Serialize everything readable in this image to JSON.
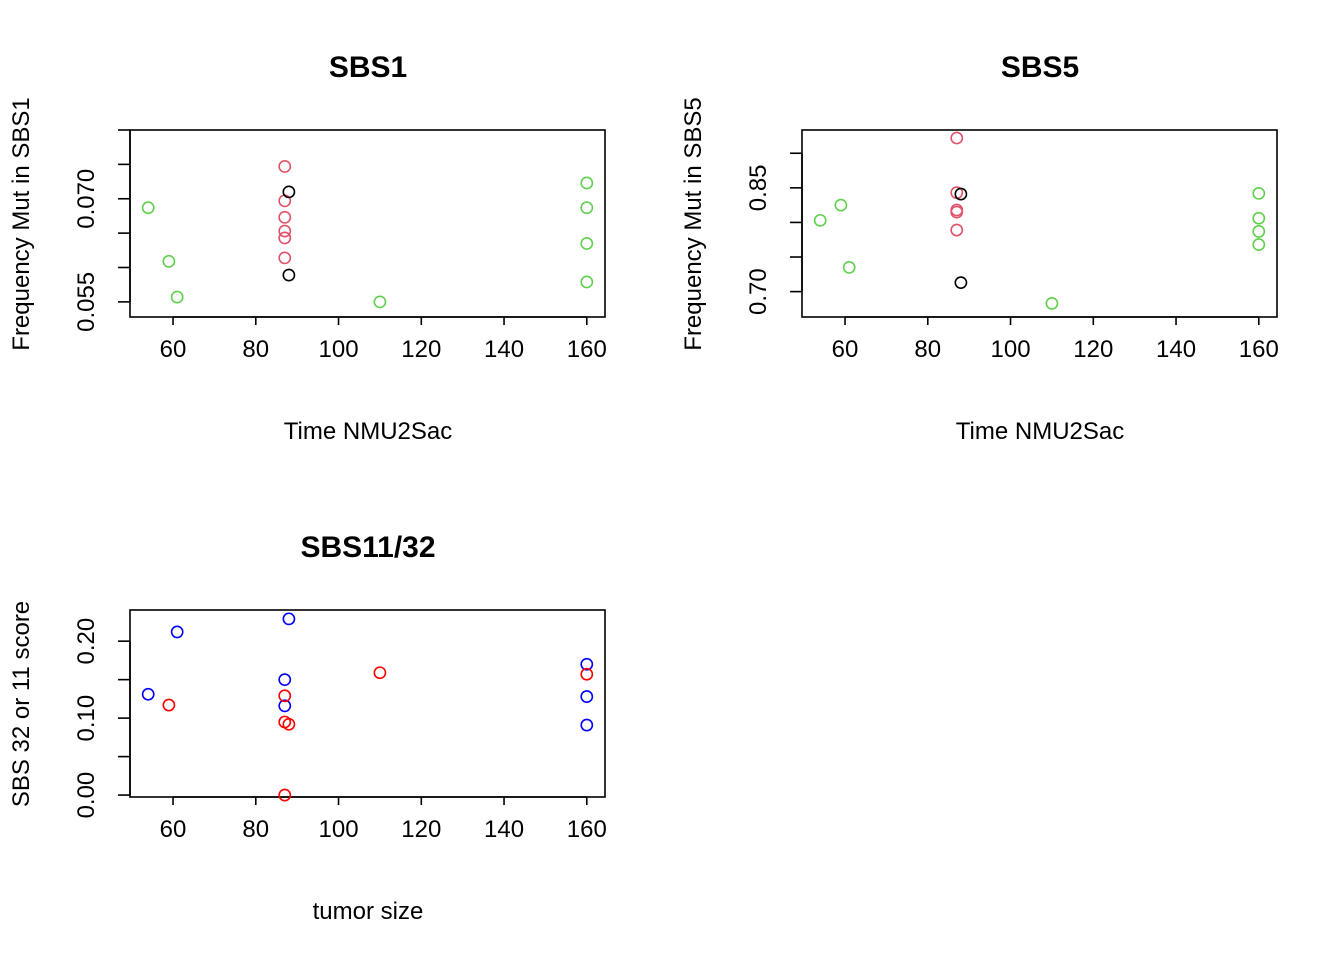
{
  "colors": {
    "black": "#000000",
    "rose": "#DF536B",
    "green": "#61D04F",
    "red": "#FF0000",
    "blue": "#0000FF"
  },
  "chart_data": [
    {
      "type": "scatter",
      "title": "SBS1",
      "xlabel": "Time NMU2Sac",
      "ylabel": "Frequency Mut in SBS1",
      "xlim": [
        49.6,
        164.4
      ],
      "ylim": [
        0.0528,
        0.08
      ],
      "xticks": [
        60,
        80,
        100,
        120,
        140,
        160
      ],
      "yticks": [
        0.055,
        0.06,
        0.065,
        0.07,
        0.075,
        0.08
      ],
      "ytick_labels": [
        "0.055",
        "",
        "",
        "0.070",
        "",
        ""
      ],
      "series": [
        {
          "color": "#61D04F",
          "points": [
            [
              54,
              0.0687
            ],
            [
              59,
              0.0609
            ],
            [
              61,
              0.0557
            ],
            [
              110,
              0.055
            ],
            [
              160,
              0.0723
            ],
            [
              160,
              0.0687
            ],
            [
              160,
              0.0635
            ],
            [
              160,
              0.0579
            ]
          ]
        },
        {
          "color": "#DF536B",
          "points": [
            [
              87,
              0.0747
            ],
            [
              87,
              0.0697
            ],
            [
              87,
              0.0673
            ],
            [
              87,
              0.0653
            ],
            [
              87,
              0.0643
            ],
            [
              87,
              0.0614
            ]
          ]
        },
        {
          "color": "#000000",
          "points": [
            [
              88,
              0.071
            ],
            [
              88,
              0.0589
            ]
          ]
        }
      ]
    },
    {
      "type": "scatter",
      "title": "SBS5",
      "xlabel": "Time NMU2Sac",
      "ylabel": "Frequency Mut in SBS5",
      "xlim": [
        49.6,
        164.4
      ],
      "ylim": [
        0.6633,
        0.9336
      ],
      "xticks": [
        60,
        80,
        100,
        120,
        140,
        160
      ],
      "yticks": [
        0.7,
        0.75,
        0.8,
        0.85,
        0.9
      ],
      "ytick_labels": [
        "0.70",
        "",
        "",
        "0.85",
        ""
      ],
      "series": [
        {
          "color": "#61D04F",
          "points": [
            [
              54,
              0.803
            ],
            [
              59,
              0.825
            ],
            [
              61,
              0.735
            ],
            [
              110,
              0.683
            ],
            [
              160,
              0.842
            ],
            [
              160,
              0.806
            ],
            [
              160,
              0.787
            ],
            [
              160,
              0.768
            ]
          ]
        },
        {
          "color": "#DF536B",
          "points": [
            [
              87,
              0.922
            ],
            [
              87,
              0.843
            ],
            [
              87,
              0.818
            ],
            [
              87,
              0.815
            ],
            [
              87,
              0.789
            ]
          ]
        },
        {
          "color": "#000000",
          "points": [
            [
              88,
              0.841
            ],
            [
              88,
              0.713
            ]
          ]
        }
      ]
    },
    {
      "type": "scatter",
      "title": "SBS11/32",
      "xlabel": "tumor size",
      "ylabel": "SBS 32 or 11 score",
      "xlim": [
        49.6,
        164.4
      ],
      "ylim": [
        -0.0025,
        0.2405
      ],
      "xticks": [
        60,
        80,
        100,
        120,
        140,
        160
      ],
      "yticks": [
        0.0,
        0.05,
        0.1,
        0.15,
        0.2
      ],
      "ytick_labels": [
        "0.00",
        "",
        "0.10",
        "",
        "0.20"
      ],
      "series": [
        {
          "color": "#0000FF",
          "points": [
            [
              54,
              0.131
            ],
            [
              61,
              0.212
            ],
            [
              88,
              0.229
            ],
            [
              87,
              0.15
            ],
            [
              87,
              0.116
            ],
            [
              160,
              0.17
            ],
            [
              160,
              0.128
            ],
            [
              160,
              0.091
            ]
          ]
        },
        {
          "color": "#FF0000",
          "points": [
            [
              59,
              0.117
            ],
            [
              110,
              0.159
            ],
            [
              87,
              0.129
            ],
            [
              87,
              0.095
            ],
            [
              88,
              0.092
            ],
            [
              87,
              0.0
            ],
            [
              160,
              0.157
            ]
          ]
        }
      ]
    }
  ]
}
